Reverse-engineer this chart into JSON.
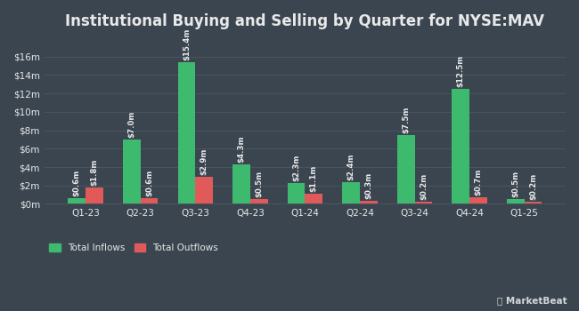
{
  "title": "Institutional Buying and Selling by Quarter for NYSE:MAV",
  "categories": [
    "Q1-23",
    "Q2-23",
    "Q3-23",
    "Q4-23",
    "Q1-24",
    "Q2-24",
    "Q3-24",
    "Q4-24",
    "Q1-25"
  ],
  "inflows": [
    0.6,
    7.0,
    15.4,
    4.3,
    2.3,
    2.4,
    7.5,
    12.5,
    0.5
  ],
  "outflows": [
    1.8,
    0.6,
    2.9,
    0.5,
    1.1,
    0.3,
    0.2,
    0.7,
    0.2
  ],
  "inflow_labels": [
    "$0.6m",
    "$7.0m",
    "$15.4m",
    "$4.3m",
    "$2.3m",
    "$2.4m",
    "$7.5m",
    "$12.5m",
    "$0.5m"
  ],
  "outflow_labels": [
    "$1.8m",
    "$0.6m",
    "$2.9m",
    "$0.5m",
    "$1.1m",
    "$0.3m",
    "$0.2m",
    "$0.7m",
    "$0.2m"
  ],
  "inflow_color": "#3dba6e",
  "outflow_color": "#e05a5a",
  "background_color": "#3a4550",
  "grid_color": "#4a5560",
  "text_color": "#e8e8e8",
  "ylabel_ticks": [
    "$0m",
    "$2m",
    "$4m",
    "$6m",
    "$8m",
    "$10m",
    "$12m",
    "$14m",
    "$16m"
  ],
  "ylabel_values": [
    0,
    2,
    4,
    6,
    8,
    10,
    12,
    14,
    16
  ],
  "ylim": [
    0,
    18
  ],
  "legend_inflow": "Total Inflows",
  "legend_outflow": "Total Outflows",
  "bar_width": 0.32,
  "title_fontsize": 12,
  "label_fontsize": 6.2,
  "tick_fontsize": 7.5,
  "legend_fontsize": 7.5
}
